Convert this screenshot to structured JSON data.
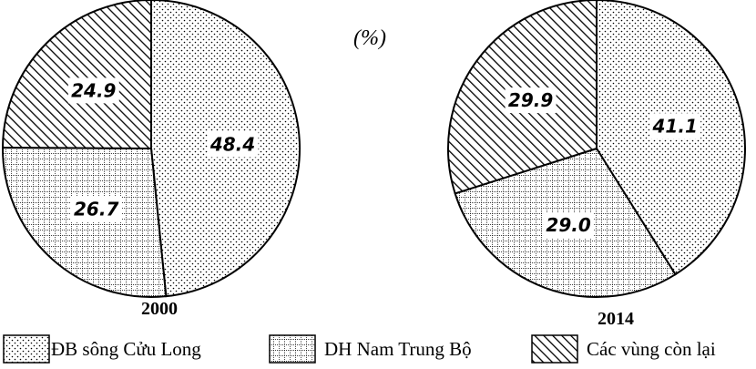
{
  "chart_data": {
    "type": "pie",
    "unit_label": "(%)",
    "legend": [
      {
        "name": "ĐB sông Cửu Long",
        "pattern": "dots"
      },
      {
        "name": "DH Nam Trung Bộ",
        "pattern": "grid"
      },
      {
        "name": "Các vùng còn lại",
        "pattern": "hatch"
      }
    ],
    "pies": [
      {
        "year": "2000",
        "values": [
          48.4,
          26.7,
          24.9
        ],
        "labels": [
          "48.4",
          "26.7",
          "24.9"
        ]
      },
      {
        "year": "2014",
        "values": [
          41.1,
          29.0,
          29.9
        ],
        "labels": [
          "41.1",
          "29.0",
          "29.9"
        ]
      }
    ],
    "start_angle_deg": 0,
    "direction": "clockwise"
  }
}
